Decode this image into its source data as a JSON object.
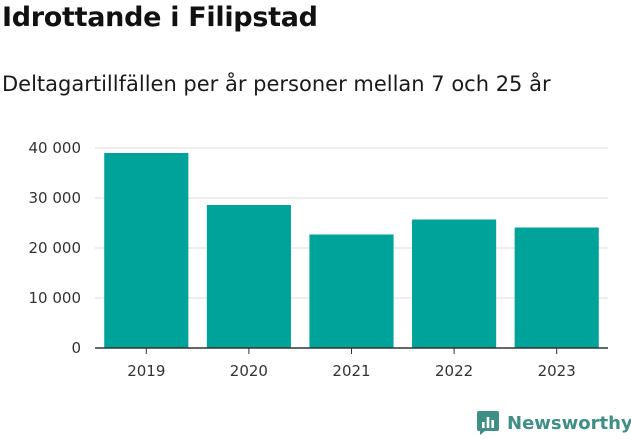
{
  "chart_data": {
    "type": "bar",
    "title": "Idrottande i Filipstad",
    "subtitle": "Deltagartillfällen per år personer mellan 7 och 25 år",
    "xlabel": "",
    "ylabel": "",
    "categories": [
      "2019",
      "2020",
      "2021",
      "2022",
      "2023"
    ],
    "values": [
      39000,
      28600,
      22700,
      25700,
      24100
    ],
    "ylim": [
      0,
      40000
    ],
    "yticks": [
      0,
      10000,
      20000,
      30000,
      40000
    ],
    "ytick_labels": [
      "0",
      "10 000",
      "20 000",
      "30 000",
      "40 000"
    ],
    "grid": true,
    "bar_color": "#00a39a",
    "grid_color": "#dddddd",
    "axis_color": "#333333"
  },
  "brand": {
    "name": "Newsworthy",
    "icon": "newsworthy-logo-icon",
    "color": "#3f8f86"
  }
}
